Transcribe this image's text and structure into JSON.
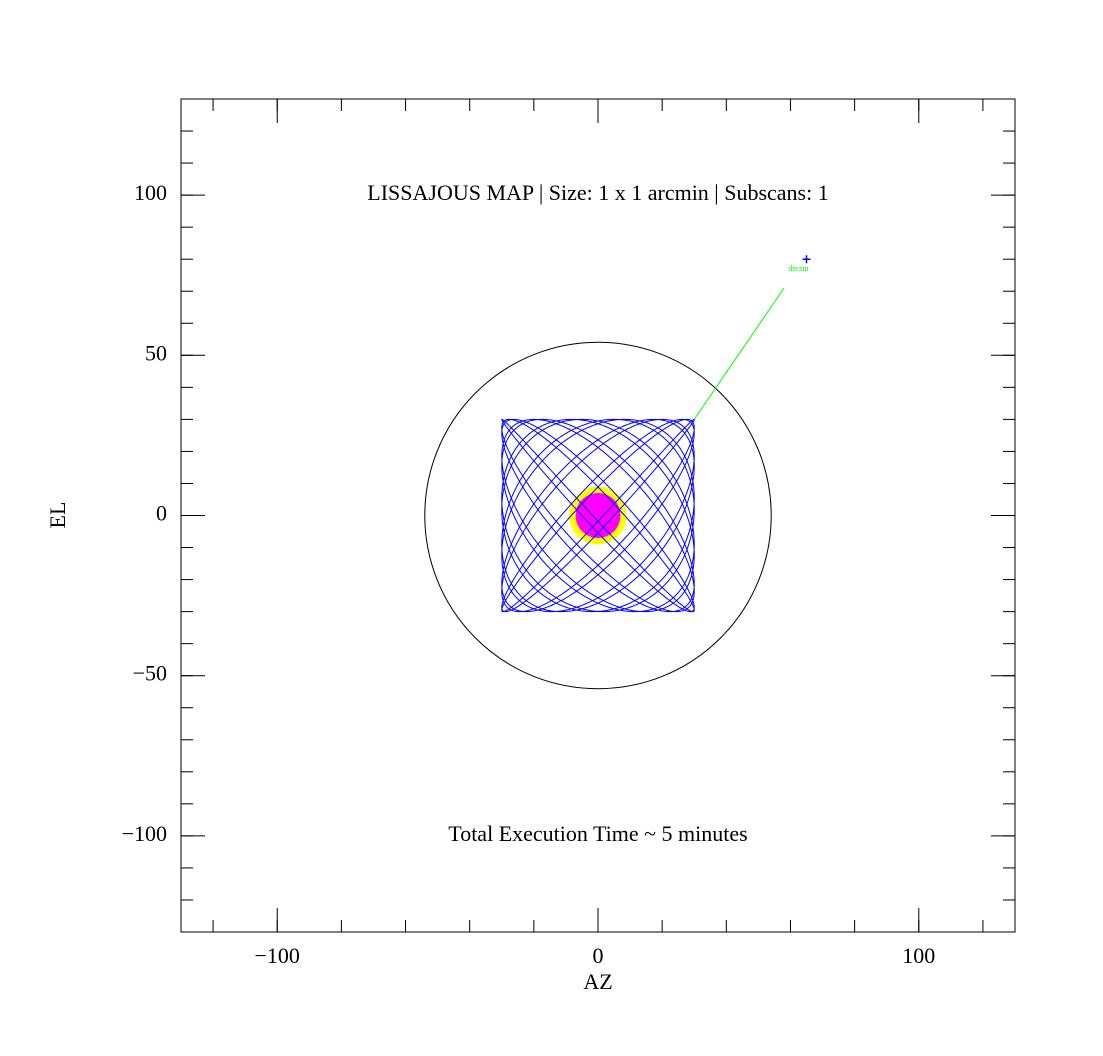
{
  "chart_data": {
    "type": "lissajous-map",
    "title": "LISSAJOUS MAP | Size: 1 x 1 arcmin | Subscans: 1",
    "title_pos": [
      0,
      100
    ],
    "annotation": "Total Execution Time ~ 5 minutes",
    "annotation_pos": [
      0,
      -100
    ],
    "xlabel": "AZ",
    "ylabel": "EL",
    "xlim": [
      -130,
      130
    ],
    "ylim": [
      -130,
      130
    ],
    "xticks": [
      {
        "value": -100,
        "label": "−100"
      },
      0,
      100
    ],
    "yticks": [
      {
        "value": -100,
        "label": "−100"
      },
      {
        "value": -50,
        "label": "−50"
      },
      0,
      50,
      100
    ],
    "xminor": [
      -120,
      -100,
      -80,
      -60,
      -40,
      -20,
      0,
      20,
      40,
      60,
      80,
      100,
      120
    ],
    "yminor": [
      -120,
      -110,
      -100,
      -90,
      -80,
      -70,
      -60,
      -50,
      -40,
      -30,
      -20,
      -10,
      0,
      10,
      20,
      30,
      40,
      50,
      60,
      70,
      80,
      90,
      100,
      110,
      120
    ],
    "field_radius": 54,
    "scan": {
      "amplitude": 30,
      "freq_x": 13,
      "freq_y": 14,
      "color": "#0000ff"
    },
    "beam": {
      "radius": 9,
      "color": "#ffff00"
    },
    "source": {
      "radius": 7,
      "color": "#ff00ff"
    },
    "pointer": {
      "x": [
        30,
        58
      ],
      "y": [
        30,
        71
      ],
      "color": "#00ff00"
    },
    "target": {
      "x": 65,
      "y": 80,
      "color": "#0000ff",
      "label": "drezin",
      "label_color": "#00ff00"
    }
  }
}
